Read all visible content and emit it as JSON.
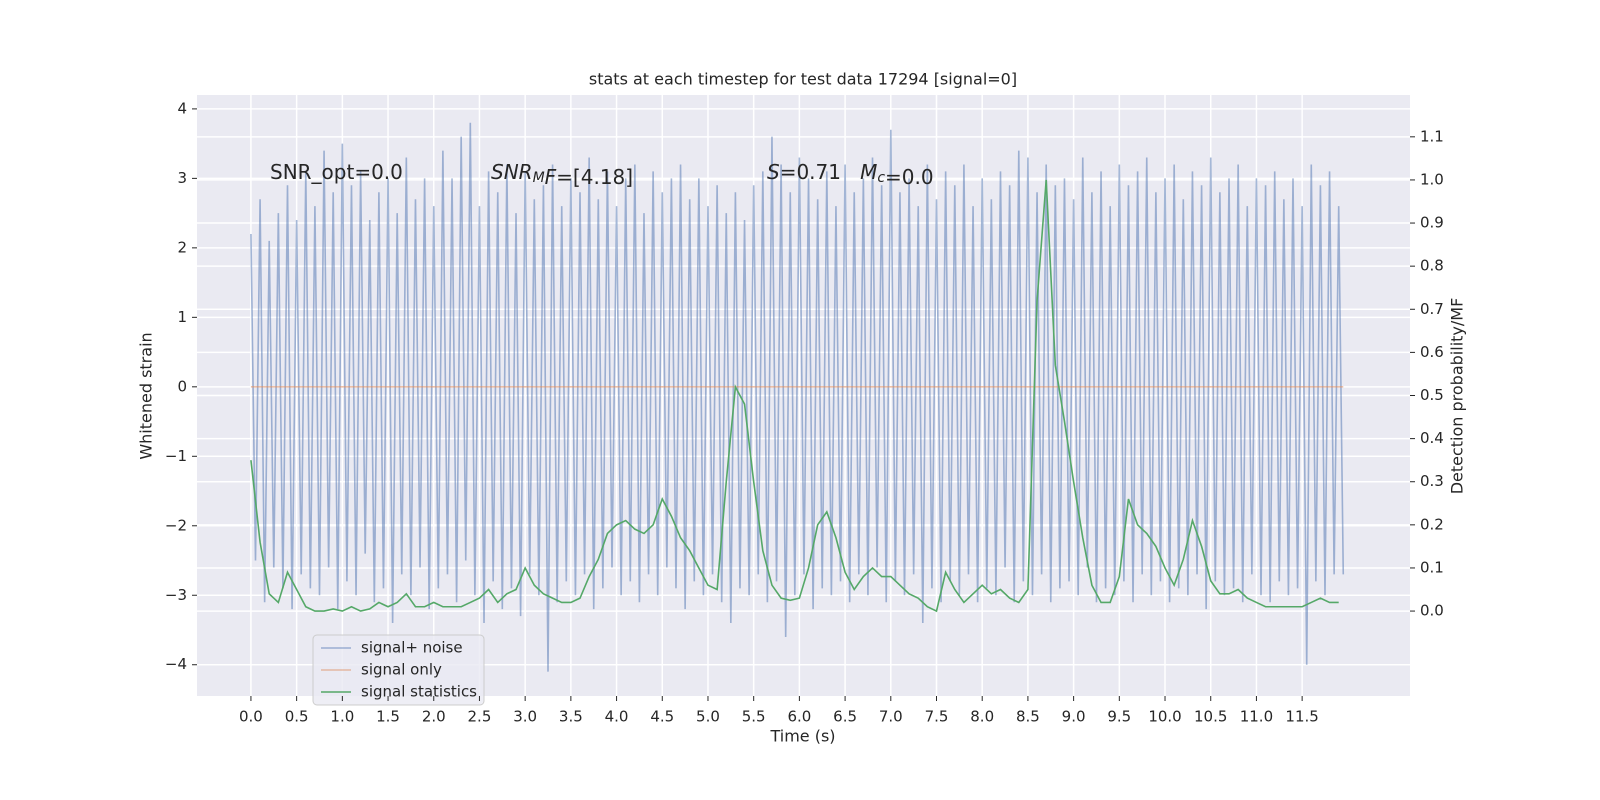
{
  "chart_data": {
    "type": "line",
    "title": "stats at each timestep for test data 17294 [signal=0]",
    "xlabel": "Time (s)",
    "ylabel": "Whitened strain",
    "y2label": "Detection probability/MF",
    "xlim": [
      -0.59,
      12.68
    ],
    "ylim": [
      -4.45,
      4.2
    ],
    "y2lim": [
      -0.197,
      1.197
    ],
    "xticks": [
      {
        "value": 0,
        "label": "0.0"
      },
      0.5,
      {
        "value": 1,
        "label": "1.0"
      },
      1.5,
      {
        "value": 2,
        "label": "2.0"
      },
      2.5,
      {
        "value": 3,
        "label": "3.0"
      },
      3.5,
      {
        "value": 4,
        "label": "4.0"
      },
      4.5,
      {
        "value": 5,
        "label": "5.0"
      },
      5.5,
      {
        "value": 6,
        "label": "6.0"
      },
      6.5,
      {
        "value": 7,
        "label": "7.0"
      },
      7.5,
      {
        "value": 8,
        "label": "8.0"
      },
      8.5,
      {
        "value": 9,
        "label": "9.0"
      },
      9.5,
      {
        "value": 10,
        "label": "10.0"
      },
      10.5,
      {
        "value": 11,
        "label": "11.0"
      },
      11.5
    ],
    "yticks": [
      {
        "value": -4,
        "label": "−4"
      },
      {
        "value": -3,
        "label": "−3"
      },
      {
        "value": -2,
        "label": "−2"
      },
      {
        "value": -1,
        "label": "−1"
      },
      0,
      1,
      2,
      3,
      4
    ],
    "y2ticks": [
      {
        "value": 0,
        "label": "0.0"
      },
      0.1,
      0.2,
      0.3,
      0.4,
      0.5,
      0.6,
      0.7,
      0.8,
      0.9,
      {
        "value": 1,
        "label": "1.0"
      },
      1.1
    ],
    "grid": true,
    "legend": "lower left",
    "annotations": [
      [
        {
          "t": "SNR_opt=0.0"
        }
      ],
      [
        {
          "t": "SNR",
          "italic": true
        },
        {
          "t": "M",
          "italic": true,
          "sub": true
        },
        {
          "t": "F",
          "italic": true
        },
        {
          "t": "=[4.18]"
        }
      ],
      [
        {
          "t": "S",
          "italic": true
        },
        {
          "t": "=0.71   "
        },
        {
          "t": "M",
          "italic": true
        },
        {
          "t": "c",
          "italic": true,
          "sub": true
        },
        {
          "t": "=0.0"
        }
      ]
    ],
    "series": [
      {
        "name": "signal+ noise",
        "color": "#4c72b0",
        "alpha": 0.5,
        "axis": "y",
        "x": [
          0,
          0.05,
          0.1,
          0.15,
          0.2,
          0.25,
          0.3,
          0.35,
          0.4,
          0.45,
          0.5,
          0.55,
          0.6,
          0.65,
          0.7,
          0.75,
          0.8,
          0.85,
          0.9,
          0.95,
          1,
          1.05,
          1.1,
          1.15,
          1.2,
          1.25,
          1.3,
          1.35,
          1.4,
          1.45,
          1.5,
          1.55,
          1.6,
          1.65,
          1.7,
          1.75,
          1.8,
          1.85,
          1.9,
          1.95,
          2,
          2.05,
          2.1,
          2.15,
          2.2,
          2.25,
          2.3,
          2.35,
          2.4,
          2.45,
          2.5,
          2.55,
          2.6,
          2.65,
          2.7,
          2.75,
          2.8,
          2.85,
          2.9,
          2.95,
          3,
          3.05,
          3.1,
          3.15,
          3.2,
          3.25,
          3.3,
          3.35,
          3.4,
          3.45,
          3.5,
          3.55,
          3.6,
          3.65,
          3.7,
          3.75,
          3.8,
          3.85,
          3.9,
          3.95,
          4,
          4.05,
          4.1,
          4.15,
          4.2,
          4.25,
          4.3,
          4.35,
          4.4,
          4.45,
          4.5,
          4.55,
          4.6,
          4.65,
          4.7,
          4.75,
          4.8,
          4.85,
          4.9,
          4.95,
          5,
          5.05,
          5.1,
          5.15,
          5.2,
          5.25,
          5.3,
          5.35,
          5.4,
          5.45,
          5.5,
          5.55,
          5.6,
          5.65,
          5.7,
          5.75,
          5.8,
          5.85,
          5.9,
          5.95,
          6,
          6.05,
          6.1,
          6.15,
          6.2,
          6.25,
          6.3,
          6.35,
          6.4,
          6.45,
          6.5,
          6.55,
          6.6,
          6.65,
          6.7,
          6.75,
          6.8,
          6.85,
          6.9,
          6.95,
          7,
          7.05,
          7.1,
          7.15,
          7.2,
          7.25,
          7.3,
          7.35,
          7.4,
          7.45,
          7.5,
          7.55,
          7.6,
          7.65,
          7.7,
          7.75,
          7.8,
          7.85,
          7.9,
          7.95,
          8,
          8.05,
          8.1,
          8.15,
          8.2,
          8.25,
          8.3,
          8.35,
          8.4,
          8.45,
          8.5,
          8.55,
          8.6,
          8.65,
          8.7,
          8.75,
          8.8,
          8.85,
          8.9,
          8.95,
          9,
          9.05,
          9.1,
          9.15,
          9.2,
          9.25,
          9.3,
          9.35,
          9.4,
          9.45,
          9.5,
          9.55,
          9.6,
          9.65,
          9.7,
          9.75,
          9.8,
          9.85,
          9.9,
          9.95,
          10,
          10.05,
          10.1,
          10.15,
          10.2,
          10.25,
          10.3,
          10.35,
          10.4,
          10.45,
          10.5,
          10.55,
          10.6,
          10.65,
          10.7,
          10.75,
          10.8,
          10.85,
          10.9,
          10.95,
          11,
          11.05,
          11.1,
          11.15,
          11.2,
          11.25,
          11.3,
          11.35,
          11.4,
          11.45,
          11.5,
          11.55,
          11.6,
          11.65,
          11.7,
          11.75,
          11.8,
          11.85,
          11.9,
          11.95
        ],
        "values": [
          2.2,
          -2.5,
          2.7,
          -3.1,
          2.1,
          -2.6,
          2.5,
          -2.9,
          2.9,
          -3.2,
          2.4,
          -2.7,
          3.1,
          -2.9,
          2.6,
          -3.0,
          3.4,
          -2.6,
          2.8,
          -3.2,
          3.5,
          -2.8,
          2.9,
          -3.0,
          3.1,
          -2.4,
          2.4,
          -3.1,
          2.8,
          -2.9,
          3.0,
          -3.4,
          2.5,
          -2.7,
          3.3,
          -3.0,
          2.7,
          -2.6,
          3.0,
          -3.2,
          2.6,
          -2.9,
          3.4,
          -2.7,
          3.0,
          -3.1,
          3.6,
          -2.5,
          3.8,
          -3.0,
          2.6,
          -3.4,
          3.1,
          -2.8,
          2.8,
          -3.2,
          3.2,
          -2.9,
          2.5,
          -3.3,
          3.1,
          -2.7,
          2.7,
          -3.0,
          2.9,
          -4.1,
          3.2,
          -3.1,
          2.6,
          -2.8,
          3.0,
          -3.0,
          2.8,
          -2.7,
          3.3,
          -3.2,
          2.7,
          -2.9,
          3.1,
          -2.6,
          2.6,
          -3.0,
          3.0,
          -2.8,
          3.2,
          -3.1,
          2.5,
          -2.7,
          3.1,
          -3.0,
          2.8,
          -2.6,
          3.0,
          -2.9,
          3.2,
          -3.2,
          2.7,
          -2.8,
          3.0,
          -3.0,
          2.6,
          -2.7,
          2.9,
          -3.1,
          2.5,
          -3.4,
          2.8,
          -2.9,
          2.4,
          -3.0,
          2.9,
          -2.7,
          3.1,
          -3.1,
          3.6,
          -2.8,
          3.2,
          -3.6,
          2.8,
          -3.0,
          3.3,
          -2.7,
          3.0,
          -3.2,
          2.7,
          -2.9,
          3.1,
          -3.0,
          2.6,
          -2.8,
          3.2,
          -3.1,
          2.8,
          -2.7,
          3.0,
          -3.0,
          3.3,
          -2.6,
          2.9,
          -3.1,
          3.7,
          -2.8,
          2.8,
          -3.0,
          3.0,
          -2.7,
          2.6,
          -3.4,
          3.2,
          -2.9,
          2.7,
          -3.1,
          3.1,
          -2.8,
          2.9,
          -3.0,
          3.2,
          -2.7,
          2.6,
          -3.1,
          3.0,
          -2.9,
          2.7,
          -3.0,
          3.1,
          -2.6,
          2.9,
          -3.1,
          3.4,
          -2.8,
          3.3,
          -3.0,
          2.8,
          -2.7,
          3.2,
          -3.1,
          2.9,
          -2.9,
          3.0,
          -2.8,
          2.7,
          -3.0,
          3.3,
          -2.6,
          2.8,
          -3.1,
          3.1,
          -2.9,
          2.6,
          -3.0,
          3.2,
          -2.8,
          2.9,
          -3.1,
          3.1,
          -2.7,
          3.3,
          -3.0,
          2.8,
          -2.8,
          3.0,
          -3.1,
          3.2,
          -2.9,
          2.7,
          -3.0,
          3.1,
          -2.7,
          2.9,
          -3.2,
          3.3,
          -2.8,
          2.8,
          -3.0,
          3.0,
          -2.9,
          3.2,
          -3.1,
          2.6,
          -2.7,
          3.0,
          -3.0,
          2.9,
          -3.1,
          3.1,
          -2.8,
          2.7,
          -3.0,
          3.0,
          -2.9,
          2.6,
          -4.0,
          3.2,
          -2.8,
          2.9,
          -3.0,
          3.1,
          -2.7,
          2.6,
          -2.7
        ]
      },
      {
        "name": "signal only",
        "color": "#dd8452",
        "alpha": 0.5,
        "axis": "y",
        "x": [
          0,
          11.95
        ],
        "values": [
          0,
          0
        ]
      },
      {
        "name": "signal statistics",
        "color": "#55a868",
        "alpha": 1,
        "axis": "y2",
        "x": [
          0,
          0.1,
          0.2,
          0.3,
          0.4,
          0.5,
          0.6,
          0.7,
          0.8,
          0.9,
          1,
          1.1,
          1.2,
          1.3,
          1.4,
          1.5,
          1.6,
          1.7,
          1.8,
          1.9,
          2,
          2.1,
          2.2,
          2.3,
          2.4,
          2.5,
          2.6,
          2.7,
          2.8,
          2.9,
          3,
          3.1,
          3.2,
          3.3,
          3.4,
          3.5,
          3.6,
          3.7,
          3.8,
          3.9,
          4,
          4.1,
          4.2,
          4.3,
          4.4,
          4.5,
          4.6,
          4.7,
          4.8,
          4.9,
          5,
          5.1,
          5.2,
          5.3,
          5.4,
          5.5,
          5.6,
          5.7,
          5.8,
          5.9,
          6,
          6.1,
          6.2,
          6.3,
          6.4,
          6.5,
          6.6,
          6.7,
          6.8,
          6.9,
          7,
          7.1,
          7.2,
          7.3,
          7.4,
          7.5,
          7.6,
          7.7,
          7.8,
          7.9,
          8,
          8.1,
          8.2,
          8.3,
          8.4,
          8.5,
          8.6,
          8.7,
          8.8,
          8.9,
          9,
          9.1,
          9.2,
          9.3,
          9.4,
          9.5,
          9.6,
          9.7,
          9.8,
          9.9,
          10,
          10.1,
          10.2,
          10.3,
          10.4,
          10.5,
          10.6,
          10.7,
          10.8,
          10.9,
          11,
          11.1,
          11.2,
          11.3,
          11.4,
          11.5,
          11.6,
          11.7,
          11.8,
          11.9
        ],
        "values": [
          0.35,
          0.16,
          0.04,
          0.02,
          0.09,
          0.05,
          0.01,
          0,
          0,
          0.005,
          0,
          0.01,
          0,
          0.005,
          0.02,
          0.01,
          0.02,
          0.04,
          0.01,
          0.01,
          0.02,
          0.01,
          0.01,
          0.01,
          0.02,
          0.03,
          0.05,
          0.02,
          0.04,
          0.05,
          0.1,
          0.06,
          0.04,
          0.03,
          0.02,
          0.02,
          0.03,
          0.08,
          0.12,
          0.18,
          0.2,
          0.21,
          0.19,
          0.18,
          0.2,
          0.26,
          0.22,
          0.17,
          0.14,
          0.1,
          0.06,
          0.05,
          0.3,
          0.52,
          0.48,
          0.3,
          0.14,
          0.06,
          0.03,
          0.025,
          0.03,
          0.1,
          0.2,
          0.23,
          0.17,
          0.09,
          0.05,
          0.08,
          0.1,
          0.08,
          0.08,
          0.06,
          0.04,
          0.03,
          0.01,
          0,
          0.09,
          0.05,
          0.02,
          0.04,
          0.06,
          0.04,
          0.05,
          0.03,
          0.02,
          0.05,
          0.72,
          1.0,
          0.57,
          0.44,
          0.3,
          0.17,
          0.06,
          0.02,
          0.02,
          0.08,
          0.26,
          0.2,
          0.18,
          0.15,
          0.1,
          0.06,
          0.12,
          0.21,
          0.15,
          0.07,
          0.04,
          0.04,
          0.05,
          0.03,
          0.02,
          0.01,
          0.01,
          0.01,
          0.01,
          0.01,
          0.02,
          0.03,
          0.02,
          0.02
        ]
      }
    ]
  }
}
